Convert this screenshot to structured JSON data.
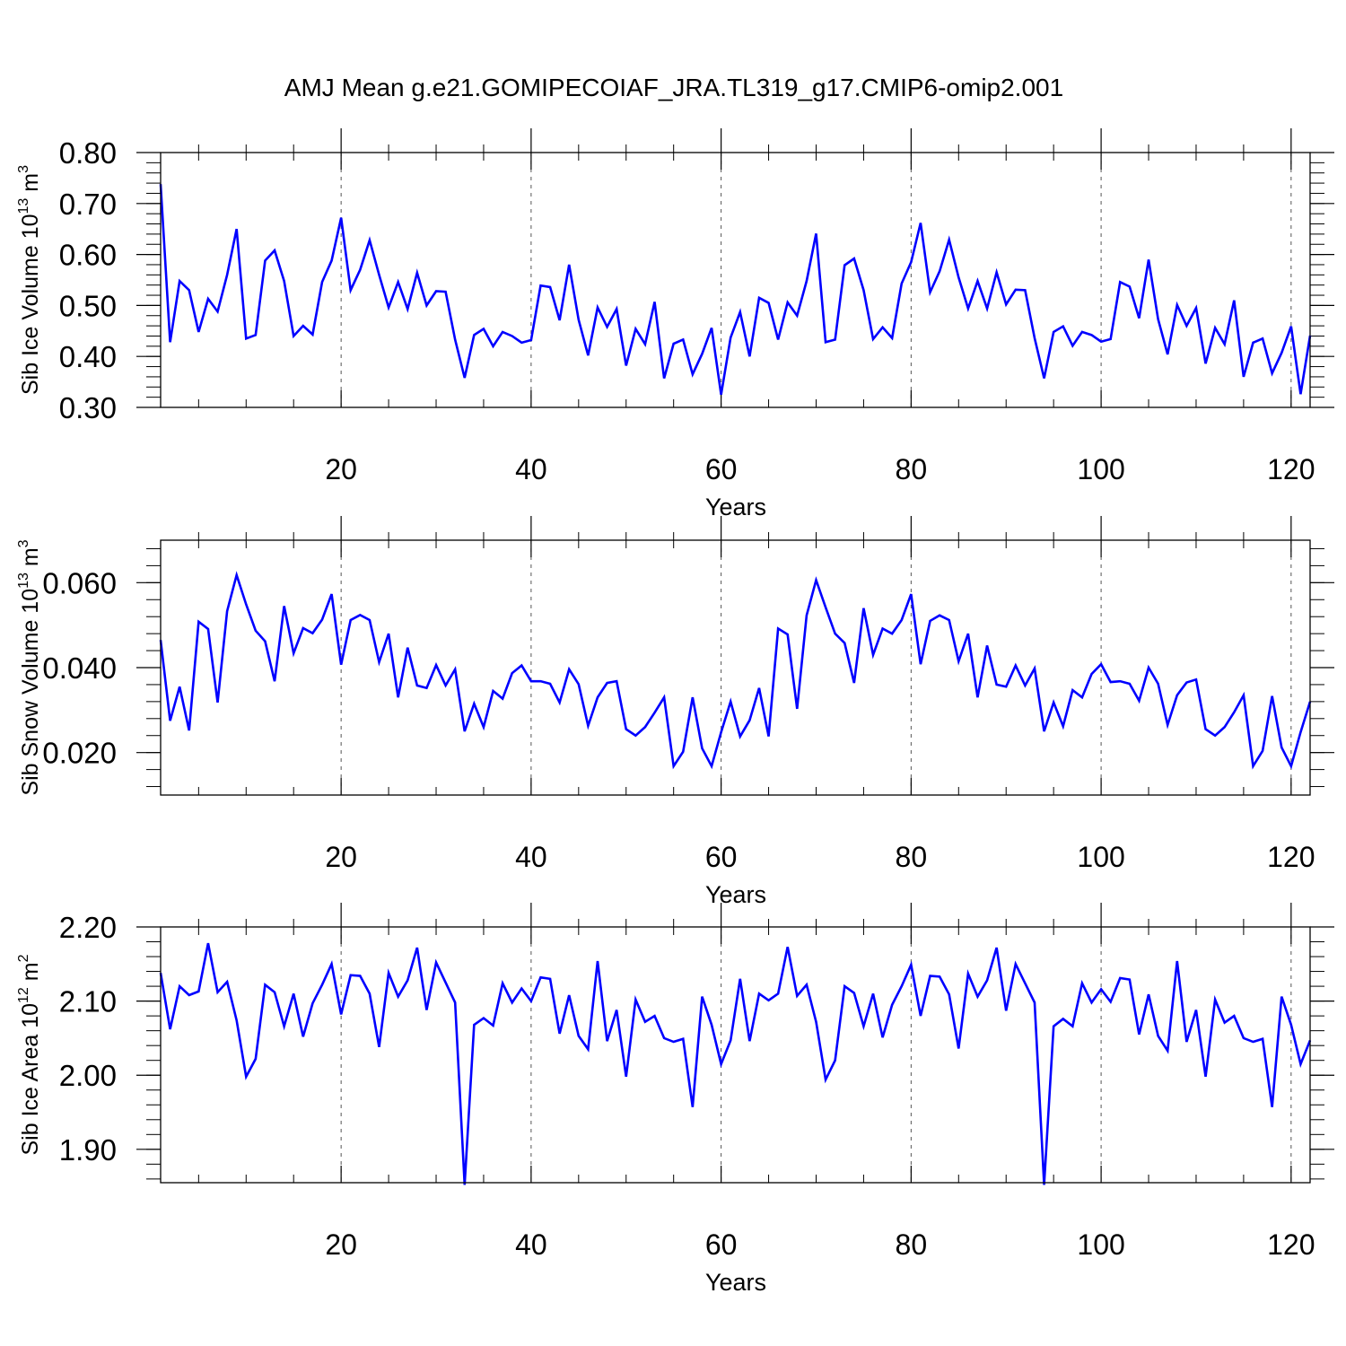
{
  "figure": {
    "title": "AMJ Mean g.e21.GOMIPECOIAF_JRA.TL319_g17.CMIP6-omip2.001",
    "line_color": "#0000ff"
  },
  "chart_data": [
    {
      "type": "line",
      "title": "",
      "xlabel": "Years",
      "ylabel_parts": [
        "Sib Ice Volume 10",
        "13",
        " m",
        "3"
      ],
      "xlim": [
        1,
        122
      ],
      "ylim": [
        0.3,
        0.8
      ],
      "xticks": [
        20,
        40,
        60,
        80,
        100,
        120
      ],
      "xtick_labels": [
        "20",
        "40",
        "60",
        "80",
        "100",
        "120"
      ],
      "yticks": [
        0.3,
        0.4,
        0.5,
        0.6,
        0.7,
        0.8
      ],
      "ytick_labels": [
        "0.30",
        "0.40",
        "0.50",
        "0.60",
        "0.70",
        "0.80"
      ],
      "grid_x": [
        20,
        40,
        60,
        80,
        100,
        120
      ],
      "series": [
        {
          "name": "Sib Ice Volume",
          "x_start": 1,
          "values": [
            0.738,
            0.428,
            0.548,
            0.53,
            0.448,
            0.513,
            0.488,
            0.56,
            0.65,
            0.435,
            0.442,
            0.588,
            0.608,
            0.548,
            0.44,
            0.46,
            0.443,
            0.546,
            0.588,
            0.672,
            0.53,
            0.57,
            0.628,
            0.56,
            0.496,
            0.546,
            0.493,
            0.564,
            0.5,
            0.528,
            0.527,
            0.433,
            0.358,
            0.442,
            0.454,
            0.42,
            0.448,
            0.44,
            0.427,
            0.432,
            0.539,
            0.536,
            0.471,
            0.58,
            0.472,
            0.402,
            0.496,
            0.458,
            0.493,
            0.382,
            0.454,
            0.424,
            0.507,
            0.357,
            0.425,
            0.433,
            0.365,
            0.405,
            0.456,
            0.325,
            0.437,
            0.487,
            0.4,
            0.515,
            0.505,
            0.433,
            0.506,
            0.48,
            0.548,
            0.641,
            0.428,
            0.433,
            0.579,
            0.592,
            0.53,
            0.434,
            0.457,
            0.436,
            0.543,
            0.585,
            0.662,
            0.526,
            0.567,
            0.629,
            0.555,
            0.494,
            0.548,
            0.494,
            0.565,
            0.502,
            0.531,
            0.53,
            0.436,
            0.357,
            0.448,
            0.459,
            0.421,
            0.448,
            0.442,
            0.429,
            0.434,
            0.546,
            0.537,
            0.475,
            0.59,
            0.473,
            0.404,
            0.501,
            0.46,
            0.495,
            0.386,
            0.456,
            0.424,
            0.51,
            0.36,
            0.427,
            0.435,
            0.367,
            0.407,
            0.459,
            0.326,
            0.441
          ]
        }
      ]
    },
    {
      "type": "line",
      "title": "",
      "xlabel": "Years",
      "ylabel_parts": [
        "Sib Snow Volume 10",
        "13",
        " m",
        "3"
      ],
      "xlim": [
        1,
        122
      ],
      "ylim": [
        0.01,
        0.07
      ],
      "xticks": [
        20,
        40,
        60,
        80,
        100,
        120
      ],
      "xtick_labels": [
        "20",
        "40",
        "60",
        "80",
        "100",
        "120"
      ],
      "yticks": [
        0.02,
        0.04,
        0.06
      ],
      "ytick_labels": [
        "0.020",
        "0.040",
        "0.060"
      ],
      "grid_x": [
        20,
        40,
        60,
        80,
        100,
        120
      ],
      "series": [
        {
          "name": "Sib Snow Volume",
          "x_start": 1,
          "values": [
            0.0465,
            0.0275,
            0.0355,
            0.0252,
            0.0508,
            0.0491,
            0.0318,
            0.0533,
            0.0618,
            0.0549,
            0.0487,
            0.0462,
            0.0368,
            0.0545,
            0.0434,
            0.0493,
            0.0481,
            0.0513,
            0.0573,
            0.0407,
            0.0512,
            0.0524,
            0.0512,
            0.0413,
            0.048,
            0.033,
            0.0447,
            0.0358,
            0.0352,
            0.0406,
            0.0358,
            0.0396,
            0.025,
            0.0315,
            0.026,
            0.0345,
            0.0327,
            0.0387,
            0.0405,
            0.0368,
            0.0368,
            0.0362,
            0.0318,
            0.0396,
            0.0361,
            0.0263,
            0.033,
            0.0364,
            0.0368,
            0.0255,
            0.024,
            0.026,
            0.0294,
            0.033,
            0.0168,
            0.0202,
            0.033,
            0.021,
            0.0168,
            0.0248,
            0.032,
            0.0238,
            0.0276,
            0.0352,
            0.0238,
            0.0492,
            0.0478,
            0.0303,
            0.0523,
            0.0606,
            0.0542,
            0.048,
            0.0458,
            0.0364,
            0.054,
            0.043,
            0.0492,
            0.048,
            0.0512,
            0.0573,
            0.0408,
            0.051,
            0.0523,
            0.0512,
            0.0415,
            0.048,
            0.033,
            0.0452,
            0.036,
            0.0355,
            0.0405,
            0.0358,
            0.0398,
            0.025,
            0.0318,
            0.0262,
            0.0347,
            0.033,
            0.0385,
            0.0408,
            0.0366,
            0.0368,
            0.0362,
            0.0322,
            0.04,
            0.0362,
            0.0265,
            0.0335,
            0.0365,
            0.0372,
            0.0255,
            0.024,
            0.026,
            0.0295,
            0.0335,
            0.0168,
            0.0204,
            0.0333,
            0.0212,
            0.0168,
            0.0248,
            0.032
          ]
        }
      ]
    },
    {
      "type": "line",
      "title": "",
      "xlabel": "Years",
      "ylabel_parts": [
        "Sib Ice Area 10",
        "12",
        " m",
        "2"
      ],
      "xlim": [
        1,
        122
      ],
      "ylim": [
        1.855,
        2.2
      ],
      "xticks": [
        20,
        40,
        60,
        80,
        100,
        120
      ],
      "xtick_labels": [
        "20",
        "40",
        "60",
        "80",
        "100",
        "120"
      ],
      "yticks": [
        1.9,
        2.0,
        2.1,
        2.2
      ],
      "ytick_labels": [
        "1.90",
        "2.00",
        "2.10",
        "2.20"
      ],
      "grid_x": [
        20,
        40,
        60,
        80,
        100,
        120
      ],
      "series": [
        {
          "name": "Sib Ice Area",
          "x_start": 1,
          "values": [
            2.138,
            2.062,
            2.12,
            2.108,
            2.113,
            2.178,
            2.112,
            2.126,
            2.074,
            1.998,
            2.022,
            2.122,
            2.112,
            2.066,
            2.11,
            2.052,
            2.097,
            2.122,
            2.15,
            2.082,
            2.135,
            2.134,
            2.11,
            2.038,
            2.138,
            2.106,
            2.128,
            2.172,
            2.088,
            2.152,
            2.125,
            2.098,
            1.852,
            2.068,
            2.077,
            2.067,
            2.124,
            2.098,
            2.117,
            2.1,
            2.132,
            2.13,
            2.056,
            2.108,
            2.053,
            2.035,
            2.154,
            2.046,
            2.088,
            1.998,
            2.102,
            2.072,
            2.08,
            2.05,
            2.045,
            2.049,
            1.957,
            2.106,
            2.068,
            2.015,
            2.047,
            2.13,
            2.046,
            2.11,
            2.101,
            2.11,
            2.173,
            2.107,
            2.122,
            2.072,
            1.994,
            2.02,
            2.12,
            2.111,
            2.066,
            2.11,
            2.051,
            2.095,
            2.12,
            2.149,
            2.08,
            2.134,
            2.133,
            2.109,
            2.036,
            2.137,
            2.106,
            2.128,
            2.172,
            2.087,
            2.15,
            2.124,
            2.098,
            1.852,
            2.066,
            2.076,
            2.066,
            2.124,
            2.098,
            2.116,
            2.099,
            2.131,
            2.129,
            2.055,
            2.109,
            2.053,
            2.033,
            2.154,
            2.045,
            2.088,
            1.998,
            2.102,
            2.071,
            2.08,
            2.05,
            2.045,
            2.049,
            1.957,
            2.106,
            2.068,
            2.015,
            2.047
          ]
        }
      ]
    }
  ]
}
